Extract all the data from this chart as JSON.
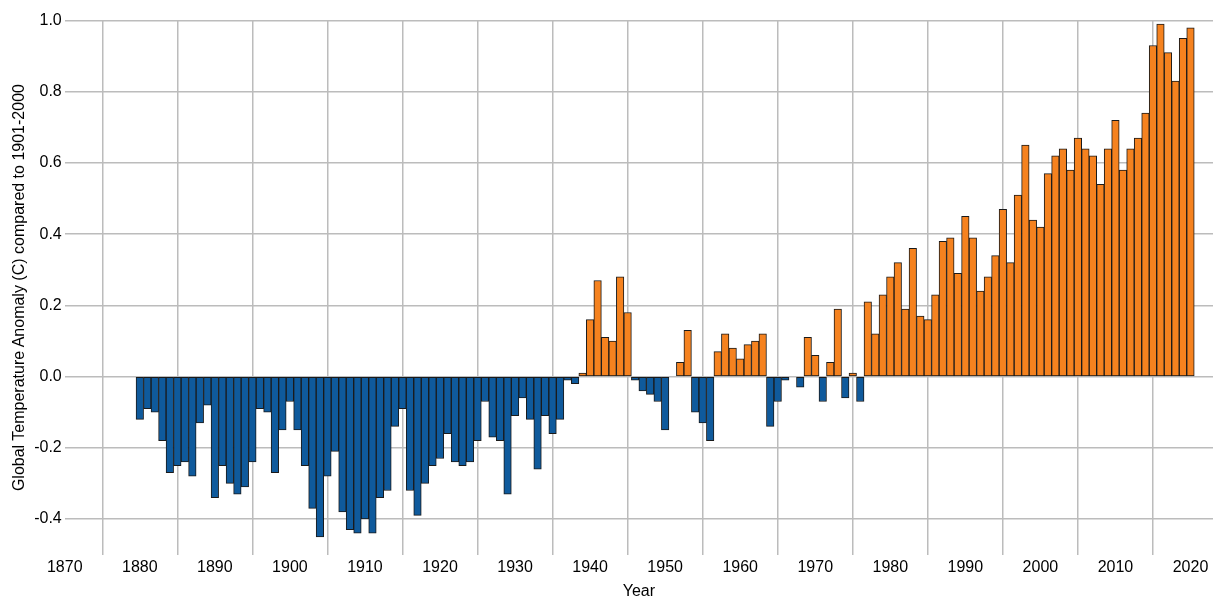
{
  "chart_data": {
    "type": "bar",
    "xlabel": "Year",
    "ylabel": "Global Temperature Anomaly (C) compared to 1901-2000",
    "x": [
      1880,
      1881,
      1882,
      1883,
      1884,
      1885,
      1886,
      1887,
      1888,
      1889,
      1890,
      1891,
      1892,
      1893,
      1894,
      1895,
      1896,
      1897,
      1898,
      1899,
      1900,
      1901,
      1902,
      1903,
      1904,
      1905,
      1906,
      1907,
      1908,
      1909,
      1910,
      1911,
      1912,
      1913,
      1914,
      1915,
      1916,
      1917,
      1918,
      1919,
      1920,
      1921,
      1922,
      1923,
      1924,
      1925,
      1926,
      1927,
      1928,
      1929,
      1930,
      1931,
      1932,
      1933,
      1934,
      1935,
      1936,
      1937,
      1938,
      1939,
      1940,
      1941,
      1942,
      1943,
      1944,
      1945,
      1946,
      1947,
      1948,
      1949,
      1950,
      1951,
      1952,
      1953,
      1954,
      1955,
      1956,
      1957,
      1958,
      1959,
      1960,
      1961,
      1962,
      1963,
      1964,
      1965,
      1966,
      1967,
      1968,
      1969,
      1970,
      1971,
      1972,
      1973,
      1974,
      1975,
      1976,
      1977,
      1978,
      1979,
      1980,
      1981,
      1982,
      1983,
      1984,
      1985,
      1986,
      1987,
      1988,
      1989,
      1990,
      1991,
      1992,
      1993,
      1994,
      1995,
      1996,
      1997,
      1998,
      1999,
      2000,
      2001,
      2002,
      2003,
      2004,
      2005,
      2006,
      2007,
      2008,
      2009,
      2010,
      2011,
      2012,
      2013,
      2014,
      2015,
      2016,
      2017,
      2018,
      2019,
      2020
    ],
    "values": [
      -0.12,
      -0.09,
      -0.1,
      -0.18,
      -0.27,
      -0.25,
      -0.24,
      -0.28,
      -0.13,
      -0.08,
      -0.34,
      -0.25,
      -0.3,
      -0.33,
      -0.31,
      -0.24,
      -0.09,
      -0.1,
      -0.27,
      -0.15,
      -0.07,
      -0.15,
      -0.25,
      -0.37,
      -0.45,
      -0.28,
      -0.21,
      -0.38,
      -0.43,
      -0.44,
      -0.4,
      -0.44,
      -0.34,
      -0.32,
      -0.14,
      -0.09,
      -0.32,
      -0.39,
      -0.3,
      -0.25,
      -0.23,
      -0.16,
      -0.24,
      -0.25,
      -0.24,
      -0.18,
      -0.07,
      -0.17,
      -0.18,
      -0.33,
      -0.11,
      -0.06,
      -0.12,
      -0.26,
      -0.11,
      -0.16,
      -0.12,
      -0.01,
      -0.02,
      0.01,
      0.16,
      0.27,
      0.11,
      0.1,
      0.28,
      0.18,
      -0.01,
      -0.04,
      -0.05,
      -0.07,
      -0.15,
      0.0,
      0.04,
      0.13,
      -0.1,
      -0.13,
      -0.18,
      0.07,
      0.12,
      0.08,
      0.05,
      0.09,
      0.1,
      0.12,
      -0.14,
      -0.07,
      -0.01,
      0.0,
      -0.03,
      0.11,
      0.06,
      -0.07,
      0.04,
      0.19,
      -0.06,
      0.01,
      -0.07,
      0.21,
      0.12,
      0.23,
      0.28,
      0.32,
      0.19,
      0.36,
      0.17,
      0.16,
      0.23,
      0.38,
      0.39,
      0.29,
      0.45,
      0.39,
      0.24,
      0.28,
      0.34,
      0.47,
      0.32,
      0.51,
      0.65,
      0.44,
      0.42,
      0.57,
      0.62,
      0.64,
      0.58,
      0.67,
      0.64,
      0.62,
      0.54,
      0.64,
      0.72,
      0.58,
      0.64,
      0.67,
      0.74,
      0.93,
      0.99,
      0.91,
      0.83,
      0.95,
      0.98
    ],
    "colors": [
      "#0f5a9c",
      "#0f5a9c",
      "#0f5a9c",
      "#0f5a9c",
      "#0f5a9c",
      "#0f5a9c",
      "#0f5a9c",
      "#0f5a9c",
      "#0f5a9c",
      "#0f5a9c",
      "#0f5a9c",
      "#0f5a9c",
      "#0f5a9c",
      "#0f5a9c",
      "#0f5a9c",
      "#0f5a9c",
      "#0f5a9c",
      "#0f5a9c",
      "#0f5a9c",
      "#0f5a9c",
      "#0f5a9c",
      "#0f5a9c",
      "#0f5a9c",
      "#0f5a9c",
      "#0f5a9c",
      "#0f5a9c",
      "#0f5a9c",
      "#0f5a9c",
      "#0f5a9c",
      "#0f5a9c",
      "#0f5a9c",
      "#0f5a9c",
      "#0f5a9c",
      "#0f5a9c",
      "#0f5a9c",
      "#0f5a9c",
      "#0f5a9c",
      "#0f5a9c",
      "#0f5a9c",
      "#0f5a9c",
      "#0f5a9c",
      "#0f5a9c",
      "#0f5a9c",
      "#0f5a9c",
      "#0f5a9c",
      "#0f5a9c",
      "#0f5a9c",
      "#0f5a9c",
      "#0f5a9c",
      "#0f5a9c",
      "#0f5a9c",
      "#0f5a9c",
      "#0f5a9c",
      "#0f5a9c",
      "#0f5a9c",
      "#0f5a9c",
      "#0f5a9c",
      "#0f5a9c",
      "#0f5a9c",
      "#f5821f",
      "#f5821f",
      "#f5821f",
      "#f5821f",
      "#f5821f",
      "#f5821f",
      "#f5821f",
      "#0f5a9c",
      "#0f5a9c",
      "#0f5a9c",
      "#0f5a9c",
      "#0f5a9c",
      "#0f5a9c",
      "#f5821f",
      "#f5821f",
      "#0f5a9c",
      "#0f5a9c",
      "#0f5a9c",
      "#f5821f",
      "#f5821f",
      "#f5821f",
      "#f5821f",
      "#f5821f",
      "#f5821f",
      "#f5821f",
      "#0f5a9c",
      "#0f5a9c",
      "#0f5a9c",
      "#0f5a9c",
      "#0f5a9c",
      "#f5821f",
      "#f5821f",
      "#0f5a9c",
      "#f5821f",
      "#f5821f",
      "#0f5a9c",
      "#f5821f",
      "#0f5a9c",
      "#f5821f",
      "#f5821f",
      "#f5821f",
      "#f5821f",
      "#f5821f",
      "#f5821f",
      "#f5821f",
      "#f5821f",
      "#f5821f",
      "#f5821f",
      "#f5821f",
      "#f5821f",
      "#f5821f",
      "#f5821f",
      "#f5821f",
      "#f5821f",
      "#f5821f",
      "#f5821f",
      "#f5821f",
      "#f5821f",
      "#f5821f",
      "#f5821f",
      "#f5821f",
      "#f5821f",
      "#f5821f",
      "#f5821f",
      "#f5821f",
      "#f5821f",
      "#f5821f",
      "#f5821f",
      "#f5821f",
      "#f5821f",
      "#f5821f",
      "#f5821f",
      "#f5821f",
      "#f5821f",
      "#f5821f",
      "#f5821f",
      "#f5821f",
      "#f5821f",
      "#f5821f",
      "#f5821f",
      "#f5821f",
      "#f5821f"
    ],
    "xlim": [
      1870,
      2023
    ],
    "xticks": [
      1870,
      1880,
      1890,
      1900,
      1910,
      1920,
      1930,
      1940,
      1950,
      1960,
      1970,
      1980,
      1990,
      2000,
      2010,
      2020
    ],
    "ylim": [
      -0.5,
      1.0
    ],
    "yticks": [
      {
        "value": -0.4,
        "label": "-0.4"
      },
      {
        "value": -0.2,
        "label": "-0.2"
      },
      {
        "value": 0,
        "label": "0.0"
      },
      {
        "value": 0.2,
        "label": "0.2"
      },
      {
        "value": 0.4,
        "label": "0.4"
      },
      {
        "value": 0.6,
        "label": "0.6"
      },
      {
        "value": 0.8,
        "label": "0.8"
      },
      {
        "value": 1.0,
        "label": "1.0"
      }
    ],
    "grid": true,
    "legend": false
  }
}
